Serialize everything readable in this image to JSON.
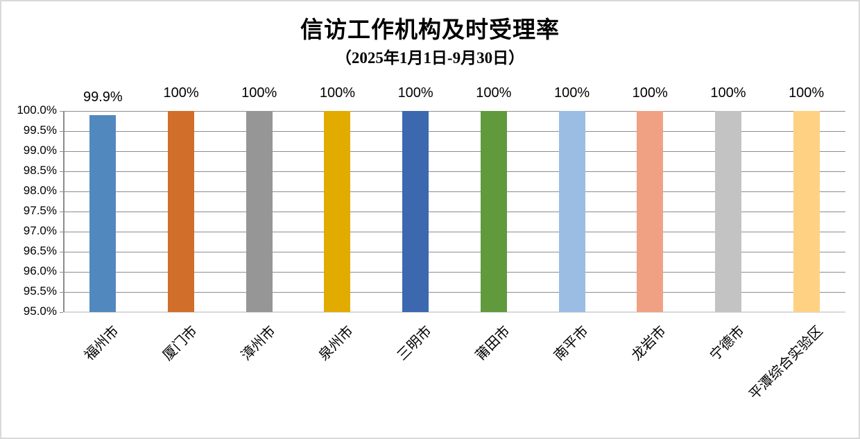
{
  "chart_data": {
    "type": "bar",
    "title": "信访工作机构及时受理率",
    "subtitle": "（2025年1月1日-9月30日）",
    "categories": [
      "福州市",
      "厦门市",
      "漳州市",
      "泉州市",
      "三明市",
      "莆田市",
      "南平市",
      "龙岩市",
      "宁德市",
      "平潭综合实验区"
    ],
    "values": [
      99.9,
      100,
      100,
      100,
      100,
      100,
      100,
      100,
      100,
      100
    ],
    "value_labels": [
      "99.9%",
      "100%",
      "100%",
      "100%",
      "100%",
      "100%",
      "100%",
      "100%",
      "100%",
      "100%"
    ],
    "bar_colors": [
      "#5189BE",
      "#D06E2A",
      "#969696",
      "#E2AB00",
      "#3C68B0",
      "#619A3D",
      "#9BBCE3",
      "#F0A183",
      "#C3C3C3",
      "#FFD183"
    ],
    "ylim": [
      95,
      100
    ],
    "y_tick_step": 0.5,
    "y_ticks": [
      "100.0%",
      "99.5%",
      "99.0%",
      "98.5%",
      "98.0%",
      "97.5%",
      "97.0%",
      "96.5%",
      "96.0%",
      "95.5%",
      "95.0%"
    ],
    "grid": true,
    "legend": "none",
    "xlabel": "",
    "ylabel": "",
    "colors": {
      "gridline": "#8C8C8C",
      "axis_line": "#8C8C8C",
      "baseline": "#D9D9D9",
      "chart_border": "#D9D9D9",
      "text": "#000000",
      "background": "#FFFFFF"
    }
  }
}
